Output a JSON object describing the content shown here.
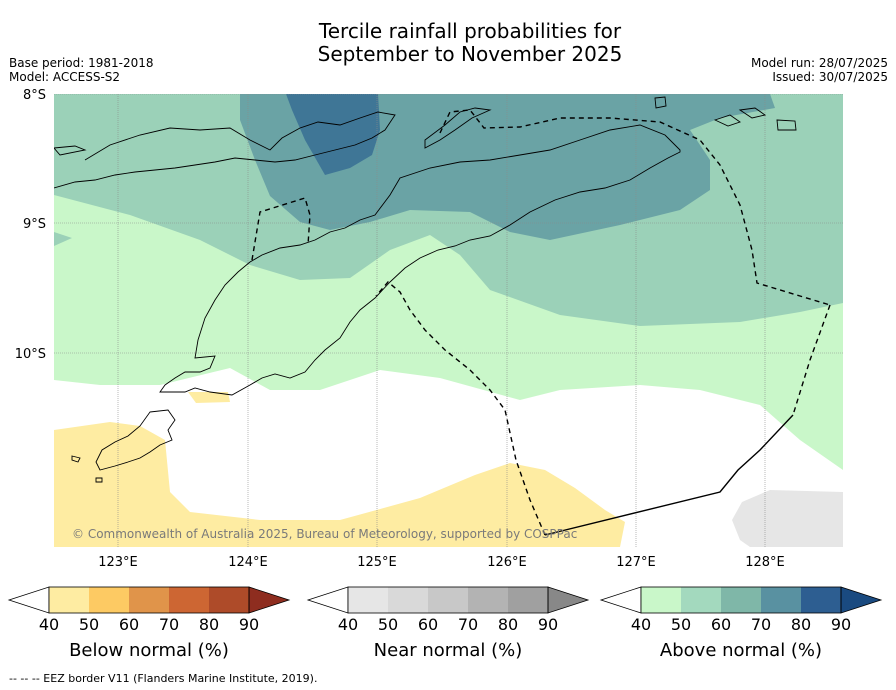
{
  "title": {
    "line1": "Tercile rainfall probabilities for",
    "line2": "September to November 2025"
  },
  "meta": {
    "base_period": "Base period: 1981-2018",
    "model": "Model: ACCESS-S2",
    "model_run": "Model run: 28/07/2025",
    "issued": "Issued: 30/07/2025"
  },
  "map": {
    "copyright": "© Commonwealth of Australia 2025, Bureau of Meteorology, supported by COSPPac",
    "lat_labels": [
      "8°S",
      "9°S",
      "10°S"
    ],
    "lon_labels": [
      "123°E",
      "124°E",
      "125°E",
      "126°E",
      "127°E",
      "128°E"
    ],
    "shading_colors": {
      "above_50": "#c9f7c9",
      "above_60": "#9bd1b8",
      "above_70": "#6aa3a5",
      "above_80": "#3f7696",
      "below_50": "#feeca2",
      "near_50": "#e6e6e6"
    }
  },
  "legends": [
    {
      "title": "Below normal (%)",
      "ticks": [
        "40",
        "50",
        "60",
        "70",
        "80",
        "90"
      ],
      "colors": [
        "#ffffff",
        "#feeca2",
        "#fdca63",
        "#e0944a",
        "#cd6633",
        "#ae4b29",
        "#8e2d1f"
      ]
    },
    {
      "title": "Near normal (%)",
      "ticks": [
        "40",
        "50",
        "60",
        "70",
        "80",
        "90"
      ],
      "colors": [
        "#ffffff",
        "#e6e6e6",
        "#d9d9d9",
        "#c8c8c8",
        "#b3b3b3",
        "#a0a0a0",
        "#888888"
      ]
    },
    {
      "title": "Above normal (%)",
      "ticks": [
        "40",
        "50",
        "60",
        "70",
        "80",
        "90"
      ],
      "colors": [
        "#ffffff",
        "#c9f7c9",
        "#a3d9be",
        "#7fb7a8",
        "#5991a1",
        "#2d5e91",
        "#1a4a80"
      ]
    }
  ],
  "footer": "--  --  -- EEZ border V11 (Flanders Marine Institute, 2019)."
}
